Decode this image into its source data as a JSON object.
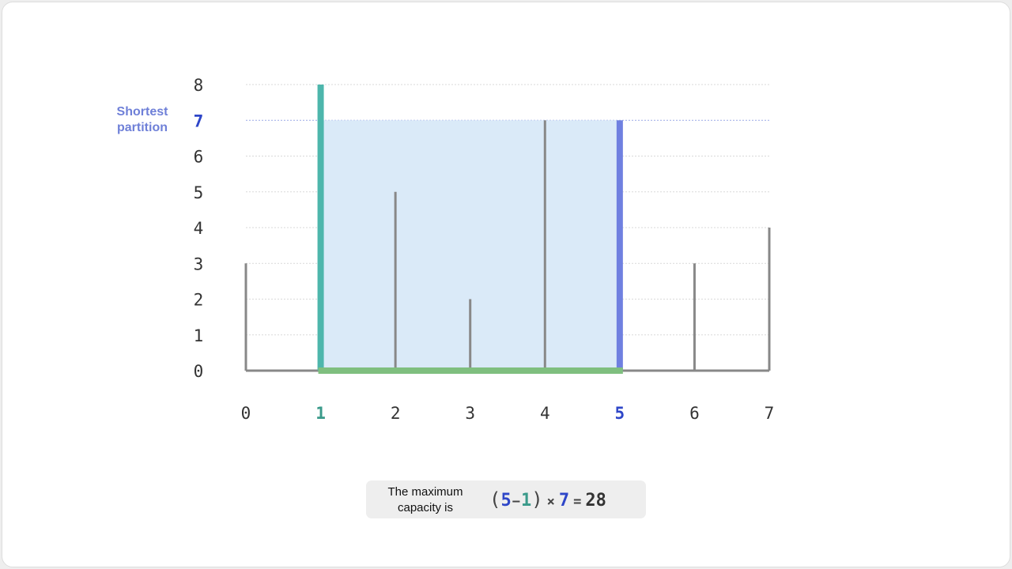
{
  "chart_data": {
    "type": "bar",
    "x": [
      0,
      1,
      2,
      3,
      4,
      5,
      6,
      7
    ],
    "values": [
      3,
      8,
      5,
      2,
      7,
      7,
      3,
      4
    ],
    "xlim": [
      0,
      7
    ],
    "ylim": [
      0,
      8
    ],
    "yticks": [
      "0",
      "1",
      "2",
      "3",
      "4",
      "5",
      "6",
      "7",
      "8"
    ],
    "xticks": [
      "0",
      "1",
      "2",
      "3",
      "4",
      "5",
      "6",
      "7"
    ],
    "grid": true,
    "highlight": {
      "left_index": 1,
      "right_index": 5,
      "water_level": 7,
      "water_level_label": "7",
      "annotation_line1": "Shortest",
      "annotation_line2": "partition"
    }
  },
  "colors": {
    "bar": "#888888",
    "left_bar": "#4db6ac",
    "right_bar": "#6f80e0",
    "water_fill": "#daeaf8",
    "base_line": "#7fbf7f",
    "level_blue": "#2e46c8",
    "level_green": "#3a9a8a",
    "annotation": "#6f80d8",
    "grid": "#d9d9d9"
  },
  "formula": {
    "caption_line1": "The maximum",
    "caption_line2": "capacity is",
    "open_paren": "(",
    "right": "5",
    "minus": "−",
    "left": "1",
    "close_paren": ")",
    "times": "×",
    "height": "7",
    "equals": "=",
    "result": "28"
  }
}
